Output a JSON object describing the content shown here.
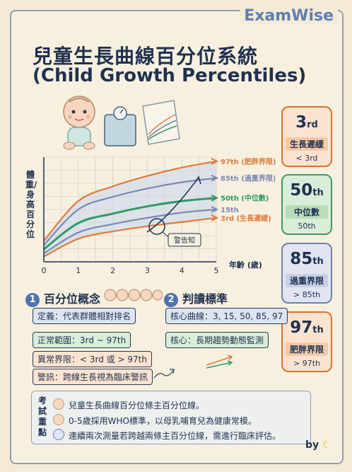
{
  "brand": "ExamWise",
  "title": "兒童生長曲線百分位系統",
  "title_en": "(Child Growth Percentiles)",
  "cards": [
    {
      "big": "3",
      "suffix": "rd",
      "label": "生長遲緩",
      "value": "< 3rd",
      "color": "#e27a3a",
      "fill": "#f6d4b9"
    },
    {
      "big": "50",
      "suffix": "th",
      "label": "中位數",
      "value": "50th",
      "color": "#3f9a62",
      "fill": "#cfe7cf"
    },
    {
      "big": "85",
      "suffix": "th",
      "label": "過重界限",
      "value": "> 85th",
      "color": "#7785b4",
      "fill": "#d9ddee"
    },
    {
      "big": "97",
      "suffix": "th",
      "label": "肥胖界限",
      "value": "> 97th",
      "color": "#e27a3a",
      "fill": "#f6d4b9"
    }
  ],
  "chart_data": {
    "type": "line",
    "ylabel": "體重/身高百分位",
    "xlabel": "年齡 (歲)",
    "x": [
      0,
      1,
      2,
      3,
      4,
      5
    ],
    "x_ticks": [
      "0",
      "1",
      "2",
      "3",
      "4",
      "5"
    ],
    "xlim": [
      0,
      5
    ],
    "ylim": [
      0,
      100
    ],
    "grid": true,
    "series": [
      {
        "name": "97th (肥胖界限)",
        "color": "#e27a3a",
        "values": [
          20,
          58,
          72,
          82,
          90,
          96
        ]
      },
      {
        "name": "85th (過重界限)",
        "color": "#7b88b6",
        "values": [
          16,
          50,
          62,
          70,
          76,
          80
        ]
      },
      {
        "name": "50th (中位數)",
        "color": "#2f9a68",
        "values": [
          12,
          37,
          46,
          53,
          58,
          61
        ]
      },
      {
        "name": "15th",
        "color": "#7b88b6",
        "values": [
          8,
          28,
          36,
          42,
          47,
          50
        ]
      },
      {
        "name": "3rd (生長遲緩)",
        "color": "#e27a3a",
        "values": [
          5,
          22,
          29,
          34,
          38,
          42
        ]
      }
    ],
    "annotation": "警告知"
  },
  "section1": {
    "num": "1",
    "title": "百分位概念",
    "items": [
      "定義：代表群體相對排名",
      "正常範圍：3rd ~ 97th",
      "異常界限：< 3rd 或 > 97th",
      "警訊：跨線生長視為臨床警訊"
    ]
  },
  "section2": {
    "num": "2",
    "title": "判讀標準",
    "items": [
      "核心曲線：3, 15, 50, 85, 97",
      "核心：長期趨勢動態監測"
    ]
  },
  "notes": {
    "heading": "考試重點",
    "items": [
      "兒童生長曲線百分位條主百分位線。",
      "0-5歲採用WHO標準，以母乳哺育兒為健康常模。",
      "連續兩次測量若跨越兩條主百分位線，需進行臨床評估。"
    ]
  },
  "byline": "by"
}
